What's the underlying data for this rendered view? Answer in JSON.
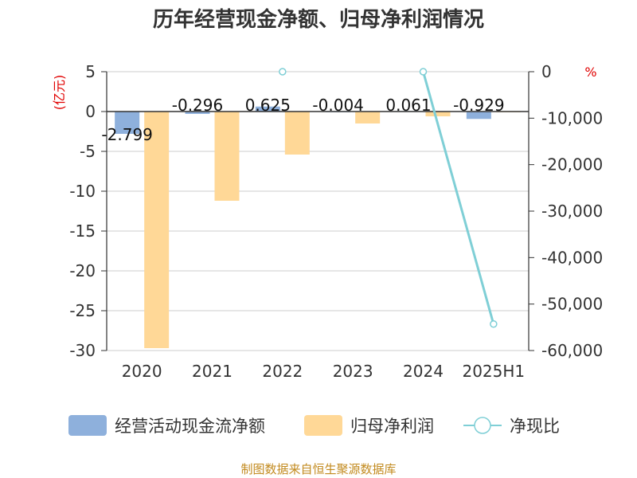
{
  "chart_data": {
    "type": "bar",
    "title": "历年经营现金净额、归母净利润情况",
    "categories": [
      "2020",
      "2021",
      "2022",
      "2023",
      "2024",
      "2025H1"
    ],
    "left_unit": "(亿元)",
    "right_unit": "%",
    "left_ylim": [
      -30,
      5
    ],
    "left_ticks": [
      "5",
      "0",
      "-5",
      "-10",
      "-15",
      "-20",
      "-25",
      "-30"
    ],
    "right_ylim": [
      -60000,
      0
    ],
    "right_ticks": [
      "0",
      "-10,000",
      "-20,000",
      "-30,000",
      "-40,000",
      "-50,000",
      "-60,000"
    ],
    "grid": true,
    "legend_position": "bottom",
    "series": [
      {
        "name": "经营活动现金流净额",
        "kind": "bar",
        "axis": "left",
        "color": "#8eb0dc",
        "values": [
          -2.799,
          -0.296,
          0.625,
          -0.004,
          0.061,
          -0.929
        ],
        "labels": [
          "-2.799",
          "-0.296",
          "0.625",
          "-0.004",
          "0.061",
          "-0.929"
        ]
      },
      {
        "name": "归母净利润",
        "kind": "bar",
        "axis": "left",
        "color": "#ffd897",
        "values": [
          -29.7,
          -11.2,
          -5.4,
          -1.5,
          -0.6,
          -0.05
        ]
      },
      {
        "name": "净现比",
        "kind": "line",
        "axis": "right",
        "color": "#7fcfd6",
        "values": [
          null,
          null,
          0,
          null,
          0,
          -54300
        ]
      }
    ],
    "source": "制图数据来自恒生聚源数据库"
  }
}
